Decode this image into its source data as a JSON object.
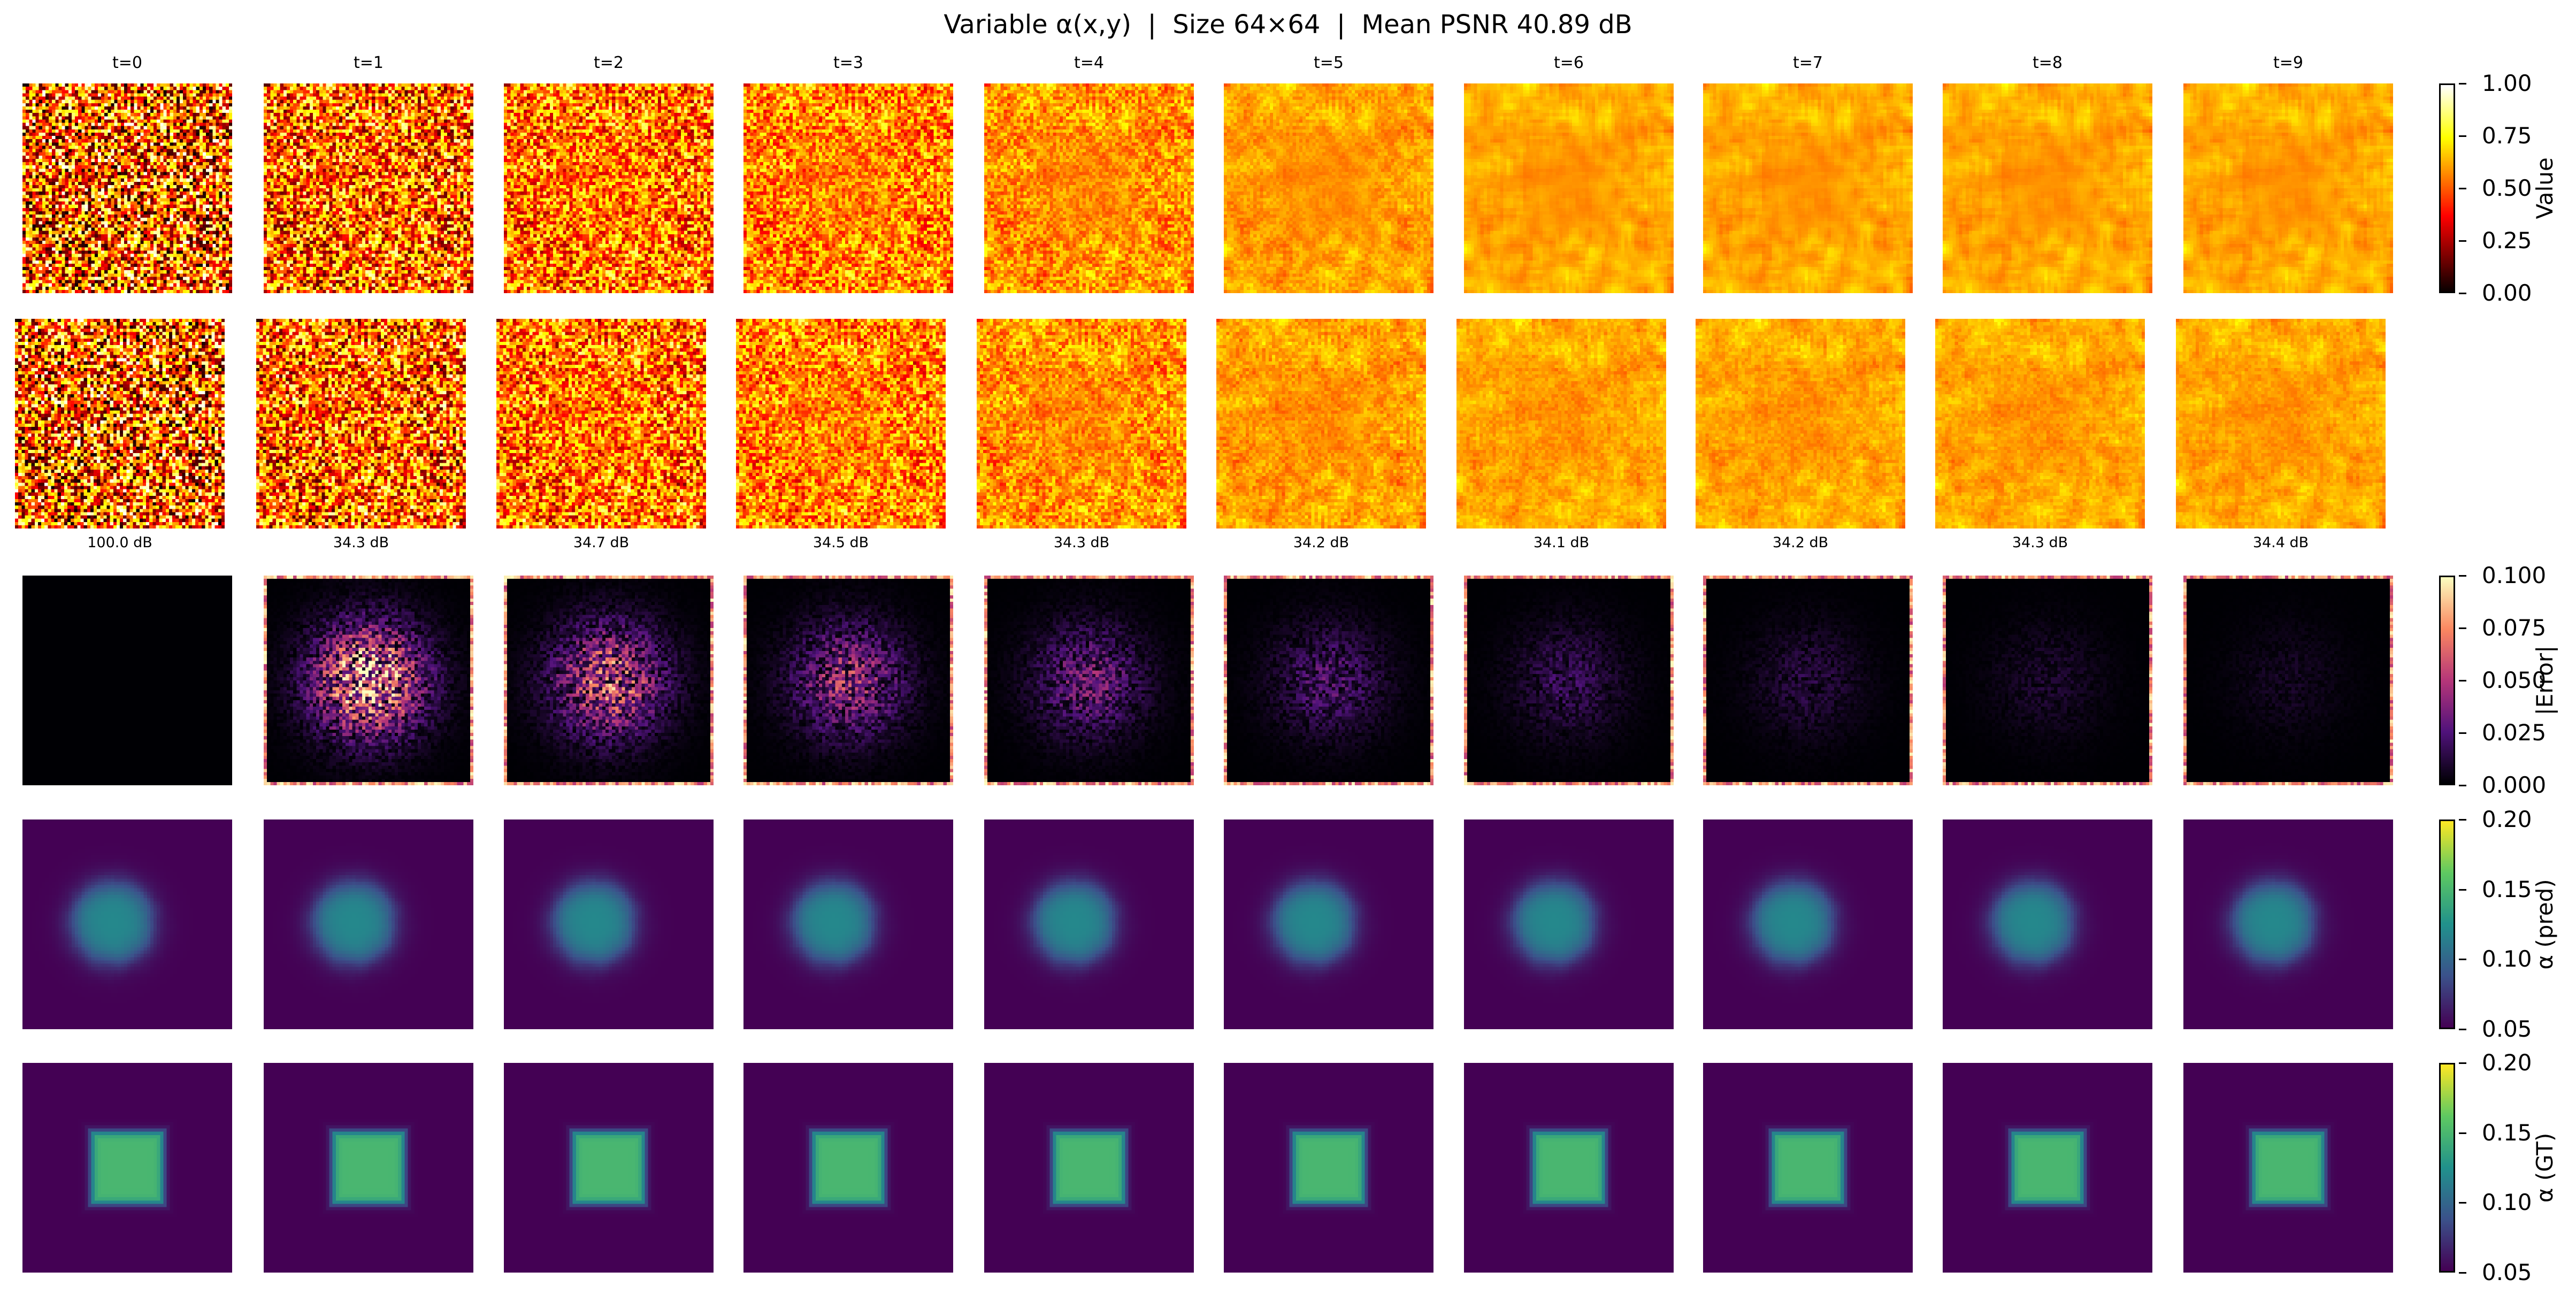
{
  "title": "Variable α(x,y)  |  Size 64×64  |  Mean PSNR 40.89 dB",
  "chart_data": {
    "type": "heatmap",
    "grid_size": [
      64,
      64
    ],
    "time_labels": [
      "t=0",
      "t=1",
      "t=2",
      "t=3",
      "t=4",
      "t=5",
      "t=6",
      "t=7",
      "t=8",
      "t=9"
    ],
    "psnr_labels": [
      "100.0 dB",
      "34.3 dB",
      "34.7 dB",
      "34.5 dB",
      "34.3 dB",
      "34.2 dB",
      "34.1 dB",
      "34.2 dB",
      "34.3 dB",
      "34.4 dB"
    ],
    "psnr_db": [
      100.0,
      34.3,
      34.7,
      34.5,
      34.3,
      34.2,
      34.1,
      34.2,
      34.3,
      34.4
    ],
    "rows": [
      {
        "name": "ground-truth-field",
        "colormap": "hot",
        "colorbar": {
          "label": "Value",
          "range": [
            0.0,
            1.0
          ],
          "ticks": [
            "0.00",
            "0.25",
            "0.50",
            "0.75",
            "1.00"
          ]
        }
      },
      {
        "name": "predicted-field",
        "colormap": "hot",
        "colorbar": null
      },
      {
        "name": "absolute-error",
        "colormap": "magma",
        "colorbar": {
          "label": "|Error|",
          "range": [
            0.0,
            0.1
          ],
          "ticks": [
            "0.000",
            "0.025",
            "0.050",
            "0.075",
            "0.100"
          ]
        }
      },
      {
        "name": "alpha-pred",
        "colormap": "viridis",
        "colorbar": {
          "label": "α (pred)",
          "range": [
            0.05,
            0.2
          ],
          "ticks": [
            "0.05",
            "0.10",
            "0.15",
            "0.20"
          ]
        }
      },
      {
        "name": "alpha-gt",
        "colormap": "viridis",
        "colorbar": {
          "label": "α (GT)",
          "range": [
            0.05,
            0.2
          ],
          "ticks": [
            "0.05",
            "0.10",
            "0.15",
            "0.20"
          ]
        }
      }
    ],
    "alpha_background": 0.05,
    "alpha_gt_inside": 0.15,
    "alpha_pred_peak": 0.12
  }
}
